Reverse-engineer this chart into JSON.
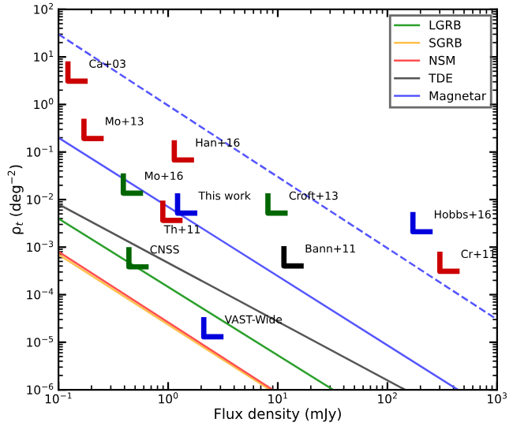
{
  "chart_data": {
    "type": "line",
    "xlabel": "Flux density (mJy)",
    "ylabel": "ρ$_{t}$ (deg$^{−2}$)",
    "log": "xy",
    "legend": "top right",
    "grid": false,
    "xlim": [
      0.1,
      1000
    ],
    "ylim": [
      1e-06,
      100
    ],
    "xticks": [
      {
        "value": 0.1,
        "label": "10$^{−1}$"
      },
      {
        "value": 1,
        "label": "10$^{0}$"
      },
      {
        "value": 10,
        "label": "10$^{1}$"
      },
      {
        "value": 100,
        "label": "10$^{2}$"
      },
      {
        "value": 1000,
        "label": "10$^{3}$"
      }
    ],
    "yticks": [
      {
        "value": 1e-06,
        "label": "10$^{−6}$"
      },
      {
        "value": 1e-05,
        "label": "10$^{−5}$"
      },
      {
        "value": 0.0001,
        "label": "10$^{−4}$"
      },
      {
        "value": 0.001,
        "label": "10$^{−3}$"
      },
      {
        "value": 0.01,
        "label": "10$^{−2}$"
      },
      {
        "value": 0.1,
        "label": "10$^{−1}$"
      },
      {
        "value": 1,
        "label": "10$^{0}$"
      },
      {
        "value": 10,
        "label": "10$^{1}$"
      },
      {
        "value": 100,
        "label": "10$^{2}$"
      }
    ],
    "series": [
      {
        "name": "LGRB",
        "color": "#2ca02c",
        "x": [
          0.1,
          32
        ],
        "values": [
          0.004,
          1e-06
        ]
      },
      {
        "name": "SGRB",
        "color": "#ffc04d",
        "x": [
          0.1,
          8.5
        ],
        "values": [
          0.0007,
          1e-06
        ]
      },
      {
        "name": "NSM",
        "color": "#ff5050",
        "x": [
          0.1,
          9
        ],
        "values": [
          0.0008,
          1e-06
        ]
      },
      {
        "name": "TDE",
        "color": "#555555",
        "x": [
          0.1,
          145
        ],
        "values": [
          0.008,
          1e-06
        ]
      },
      {
        "name": "Magnetar",
        "color": "#5555ff",
        "x": [
          0.1,
          440
        ],
        "values": [
          0.2,
          1e-06
        ]
      },
      {
        "color": "#5555ff",
        "line_style": "dashed",
        "x": [
          0.1,
          1000
        ],
        "values": [
          30,
          3e-05
        ]
      },
      {
        "name": "Ca+03",
        "type": "scatter",
        "color": "#cc0000",
        "x": [
          0.15
        ],
        "values": [
          5
        ]
      },
      {
        "name": "Mo+13",
        "type": "scatter",
        "color": "#cc0000",
        "x": [
          0.21
        ],
        "values": [
          0.31
        ]
      },
      {
        "name": "Han+16",
        "type": "scatter",
        "color": "#cc0000",
        "x": [
          1.4
        ],
        "values": [
          0.11
        ]
      },
      {
        "name": "Mo+16",
        "type": "scatter",
        "color": "#006600",
        "x": [
          0.48
        ],
        "values": [
          0.022
        ]
      },
      {
        "name": "This work",
        "type": "scatter",
        "color": "#0000dd",
        "x": [
          1.5
        ],
        "values": [
          0.0084
        ]
      },
      {
        "name": "Th+11",
        "type": "scatter",
        "color": "#cc0000",
        "x": [
          1.1
        ],
        "values": [
          0.0059
        ]
      },
      {
        "name": "Croft+13",
        "type": "scatter",
        "color": "#006600",
        "x": [
          10
        ],
        "values": [
          0.0084
        ]
      },
      {
        "name": "Hobbs+16",
        "type": "scatter",
        "color": "#0000dd",
        "x": [
          210
        ],
        "values": [
          0.0034
        ]
      },
      {
        "name": "Cr+11",
        "type": "scatter",
        "color": "#cc0000",
        "x": [
          370
        ],
        "values": [
          0.0005
        ]
      },
      {
        "name": "Bann+11",
        "type": "scatter",
        "color": "#000000",
        "x": [
          14
        ],
        "values": [
          0.00065
        ]
      },
      {
        "name": "CNSS",
        "type": "scatter",
        "color": "#006600",
        "x": [
          0.54
        ],
        "values": [
          0.00062
        ]
      },
      {
        "name": "VAST-Wide",
        "type": "scatter",
        "color": "#0000dd",
        "x": [
          2.6
        ],
        "values": [
          2.1e-05
        ]
      }
    ]
  }
}
